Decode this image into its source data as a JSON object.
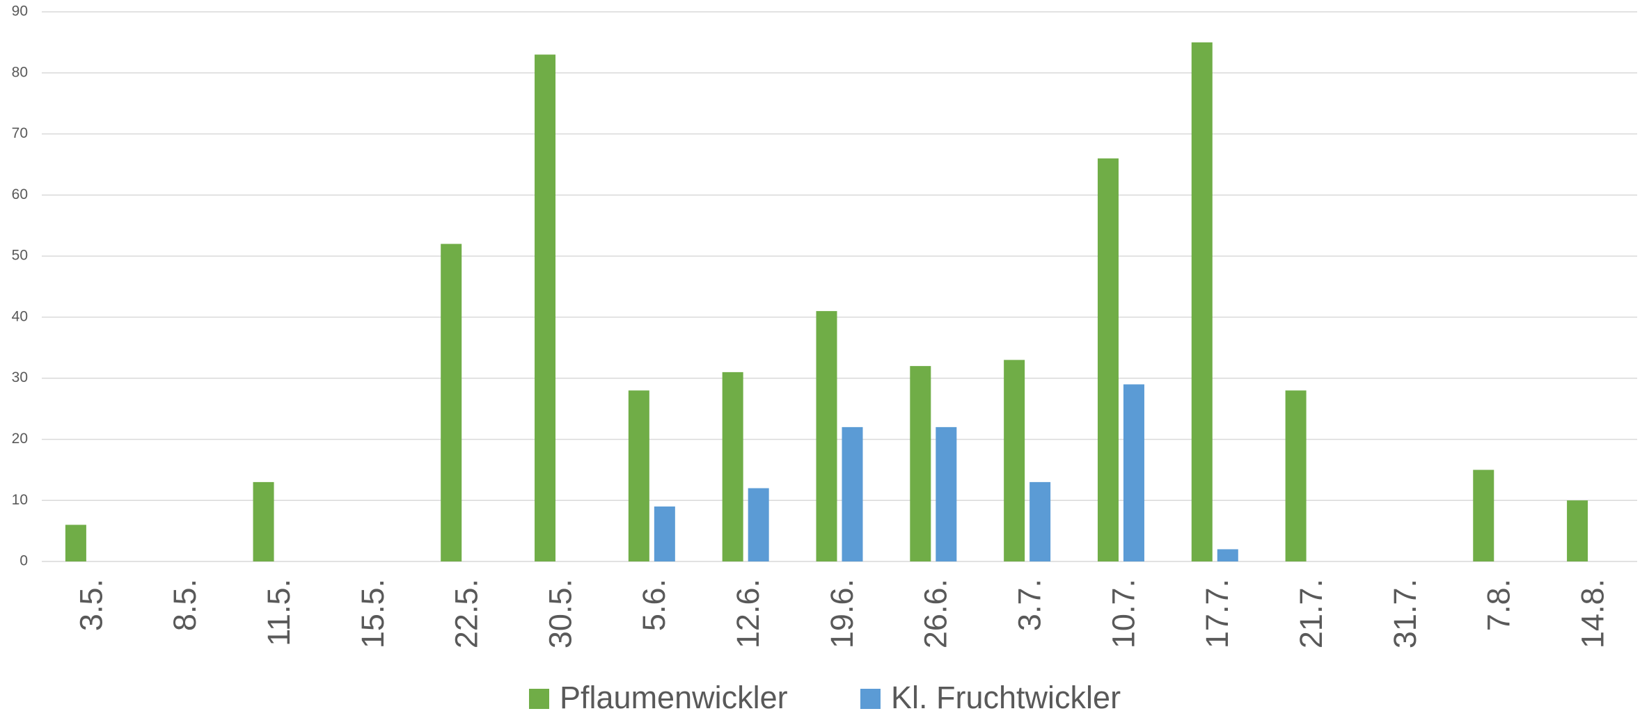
{
  "chart_data": {
    "type": "bar",
    "categories": [
      "3.5.",
      "8.5.",
      "11.5.",
      "15.5.",
      "22.5.",
      "30.5.",
      "5.6.",
      "12.6.",
      "19.6.",
      "26.6.",
      "3.7.",
      "10.7.",
      "17.7.",
      "21.7.",
      "31.7.",
      "7.8.",
      "14.8."
    ],
    "series": [
      {
        "name": "Pflaumenwickler",
        "color": "#70ad47",
        "values": [
          6,
          null,
          13,
          null,
          52,
          83,
          28,
          31,
          41,
          32,
          33,
          66,
          85,
          28,
          null,
          15,
          10
        ]
      },
      {
        "name": "Kl. Fruchtwickler",
        "color": "#5b9bd5",
        "values": [
          null,
          null,
          null,
          null,
          null,
          null,
          9,
          12,
          22,
          22,
          13,
          29,
          2,
          null,
          null,
          null,
          null
        ]
      }
    ],
    "ylim": [
      0,
      90
    ],
    "yticks": [
      0,
      10,
      20,
      30,
      40,
      50,
      60,
      70,
      80,
      90
    ],
    "grid": true,
    "legend": "bottom"
  }
}
